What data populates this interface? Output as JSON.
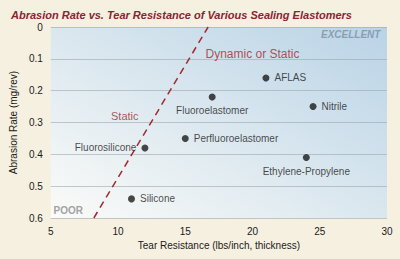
{
  "chart_data": {
    "type": "scatter",
    "title": "Abrasion Rate vs. Tear Resistance of Various Sealing Elastomers",
    "x_label": "Tear Resistance (lbs/inch, thickness)",
    "y_label": "Abrasion Rate (mg/rev)",
    "x": [
      21,
      17,
      24.5,
      15,
      12,
      24,
      11
    ],
    "values": [
      0.16,
      0.22,
      0.25,
      0.35,
      0.38,
      0.41,
      0.54
    ],
    "point_labels": [
      "AFLAS",
      "Fluoroelastomer",
      "Nitrile",
      "Perfluoroelastomer",
      "Fluorosilicone",
      "Ethylene-Propylene",
      "Silicone"
    ],
    "color": "#1a1a1a",
    "xlim": [
      5,
      30
    ],
    "xticks": [
      5,
      10,
      15,
      20,
      25,
      30
    ],
    "ylim": [
      0.6,
      0
    ],
    "yticks": [
      0,
      0.1,
      0.2,
      0.3,
      0.4,
      0.5,
      0.6
    ],
    "grid": true,
    "lines": [
      {
        "x": [
          8.2,
          16.7
        ],
        "y": [
          0.6,
          0
        ],
        "line_style": "dashed",
        "color": "#a3282f"
      }
    ],
    "annotations": [
      {
        "text": "Dynamic or Static",
        "x": 20,
        "y": 0.085,
        "color": "#a3282f"
      },
      {
        "text": "Static",
        "x": 10.5,
        "y": 0.28,
        "color": "#a3282f"
      },
      {
        "text": "EXCELLENT",
        "x": 27.3,
        "y": 0.025,
        "color": "#7d8fa3"
      },
      {
        "text": "POOR",
        "x": 6.3,
        "y": 0.575,
        "color": "#8a8a8a"
      }
    ]
  }
}
